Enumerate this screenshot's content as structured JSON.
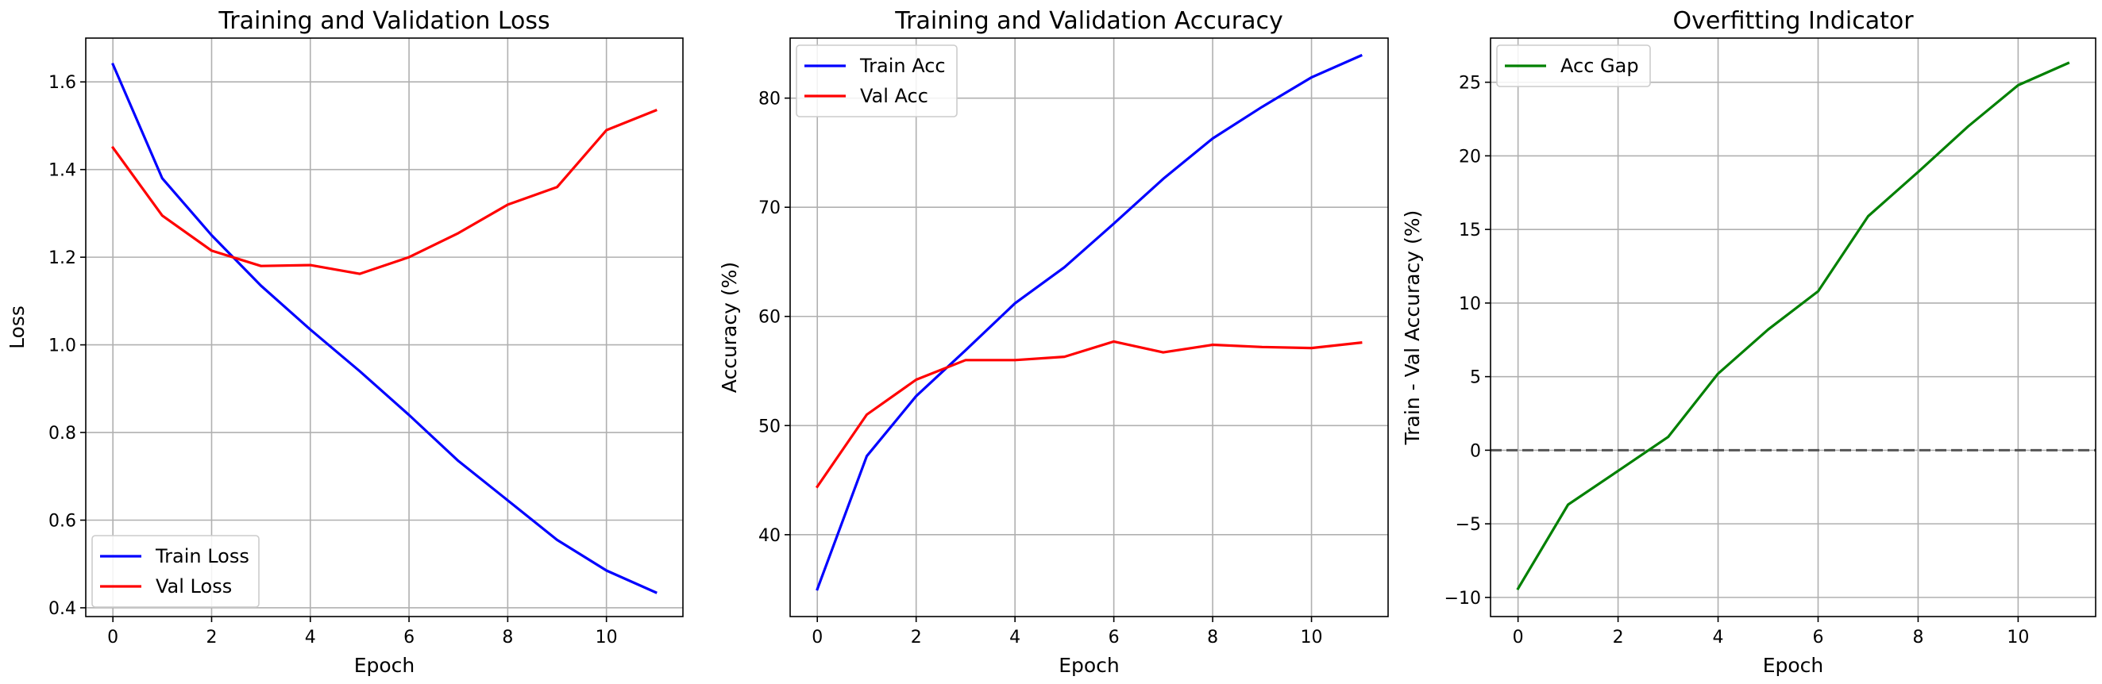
{
  "chart_data": [
    {
      "type": "line",
      "title": "Training and Validation Loss",
      "xlabel": "Epoch",
      "ylabel": "Loss",
      "x": [
        0,
        1,
        2,
        3,
        4,
        5,
        6,
        7,
        8,
        9,
        10,
        11
      ],
      "xlim": [
        -0.55,
        11.55
      ],
      "ylim": [
        0.38,
        1.7
      ],
      "xticks": [
        0,
        2,
        4,
        6,
        8,
        10
      ],
      "yticks": [
        0.4,
        0.6,
        0.8,
        1.0,
        1.2,
        1.4,
        1.6
      ],
      "ytick_labels": [
        "0.4",
        "0.6",
        "0.8",
        "1.0",
        "1.2",
        "1.4",
        "1.6"
      ],
      "grid": true,
      "legend_position": "lower-left",
      "series": [
        {
          "name": "Train Loss",
          "color": "#0000ff",
          "values": [
            1.64,
            1.38,
            1.25,
            1.135,
            1.035,
            0.94,
            0.84,
            0.735,
            0.645,
            0.555,
            0.485,
            0.435
          ]
        },
        {
          "name": "Val Loss",
          "color": "#ff0000",
          "values": [
            1.45,
            1.295,
            1.215,
            1.18,
            1.182,
            1.162,
            1.2,
            1.255,
            1.32,
            1.36,
            1.49,
            1.535
          ]
        }
      ]
    },
    {
      "type": "line",
      "title": "Training and Validation Accuracy",
      "xlabel": "Epoch",
      "ylabel": "Accuracy (%)",
      "x": [
        0,
        1,
        2,
        3,
        4,
        5,
        6,
        7,
        8,
        9,
        10,
        11
      ],
      "xlim": [
        -0.55,
        11.55
      ],
      "ylim": [
        32.5,
        85.5
      ],
      "xticks": [
        0,
        2,
        4,
        6,
        8,
        10
      ],
      "yticks": [
        40,
        50,
        60,
        70,
        80
      ],
      "ytick_labels": [
        "40",
        "50",
        "60",
        "70",
        "80"
      ],
      "grid": true,
      "legend_position": "upper-left",
      "series": [
        {
          "name": "Train Acc",
          "color": "#0000ff",
          "values": [
            35.0,
            47.2,
            52.7,
            56.9,
            61.2,
            64.5,
            68.5,
            72.6,
            76.3,
            79.2,
            81.9,
            83.9
          ]
        },
        {
          "name": "Val Acc",
          "color": "#ff0000",
          "values": [
            44.4,
            51.0,
            54.2,
            56.0,
            56.0,
            56.3,
            57.7,
            56.7,
            57.4,
            57.2,
            57.1,
            57.6
          ]
        }
      ]
    },
    {
      "type": "line",
      "title": "Overfitting Indicator",
      "xlabel": "Epoch",
      "ylabel": "Train - Val Accuracy (%)",
      "x": [
        0,
        1,
        2,
        3,
        4,
        5,
        6,
        7,
        8,
        9,
        10,
        11
      ],
      "xlim": [
        -0.55,
        11.55
      ],
      "ylim": [
        -11.3,
        28.0
      ],
      "xticks": [
        0,
        2,
        4,
        6,
        8,
        10
      ],
      "yticks": [
        -10,
        -5,
        0,
        5,
        10,
        15,
        20,
        25
      ],
      "ytick_labels": [
        "−10",
        "−5",
        "0",
        "5",
        "10",
        "15",
        "20",
        "25"
      ],
      "grid": true,
      "legend_position": "upper-left",
      "reference_line": {
        "y": 0,
        "color": "#555555",
        "style": "dashed"
      },
      "series": [
        {
          "name": "Acc Gap",
          "color": "#008000",
          "values": [
            -9.4,
            -3.7,
            -1.4,
            0.9,
            5.2,
            8.2,
            10.8,
            15.9,
            18.9,
            22.0,
            24.8,
            26.3
          ]
        }
      ]
    }
  ]
}
